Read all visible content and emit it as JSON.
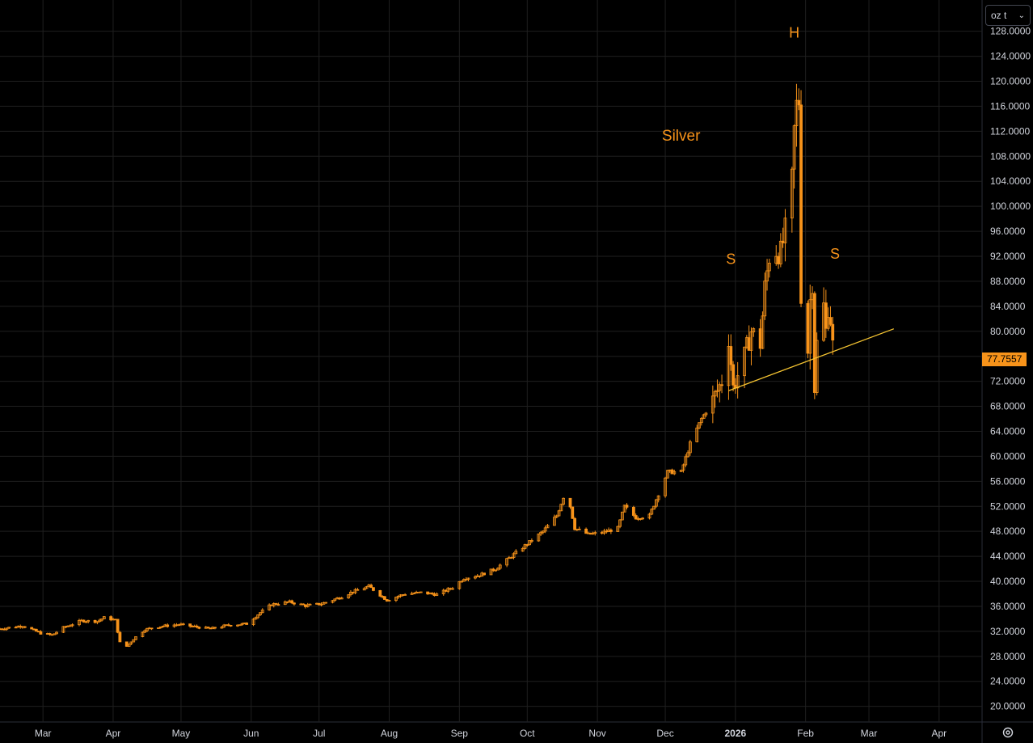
{
  "unit_selector": {
    "value": "oz t"
  },
  "last_price": "77.7557",
  "colors": {
    "background": "#000000",
    "candle": "#f7931a",
    "annotation": "#f7931a",
    "trendline": "#f5c431",
    "grid": "#1f1f1f",
    "axis_text": "#d1d4dc"
  },
  "chart_data": {
    "type": "candlestick",
    "x_axis": {
      "type": "date",
      "range": [
        "2025-02-10",
        "2026-04-20"
      ]
    },
    "y_axis": {
      "min": 17.5,
      "max": 133.0,
      "position": "right",
      "tick_labels": [
        "20.0000",
        "24.0000",
        "28.0000",
        "32.0000",
        "36.0000",
        "40.0000",
        "44.0000",
        "48.0000",
        "52.0000",
        "56.0000",
        "60.0000",
        "64.0000",
        "68.0000",
        "72.0000",
        "76.0000",
        "80.0000",
        "84.0000",
        "88.0000",
        "92.0000",
        "96.0000",
        "100.0000",
        "104.0000",
        "108.0000",
        "112.0000",
        "116.0000",
        "120.0000",
        "124.0000",
        "128.0000"
      ]
    },
    "x_tick_labels": [
      {
        "date": "2025-03-01",
        "label": "Mar"
      },
      {
        "date": "2025-04-01",
        "label": "Apr"
      },
      {
        "date": "2025-05-01",
        "label": "May"
      },
      {
        "date": "2025-06-01",
        "label": "Jun"
      },
      {
        "date": "2025-07-01",
        "label": "Jul"
      },
      {
        "date": "2025-08-01",
        "label": "Aug"
      },
      {
        "date": "2025-09-01",
        "label": "Sep"
      },
      {
        "date": "2025-10-01",
        "label": "Oct"
      },
      {
        "date": "2025-11-01",
        "label": "Nov"
      },
      {
        "date": "2025-12-01",
        "label": "Dec"
      },
      {
        "date": "2026-01-01",
        "label": "2026"
      },
      {
        "date": "2026-02-01",
        "label": "Feb"
      },
      {
        "date": "2026-03-01",
        "label": "Mar"
      },
      {
        "date": "2026-04-01",
        "label": "Apr"
      }
    ],
    "grid": true,
    "annotations": [
      {
        "text": "Silver",
        "date": "2025-12-08",
        "price": 110.5
      },
      {
        "text": "S",
        "date": "2025-12-30",
        "price": 90.8
      },
      {
        "text": "H",
        "date": "2026-01-27",
        "price": 127.0
      },
      {
        "text": "S",
        "date": "2026-02-14",
        "price": 91.6
      }
    ],
    "trendline": {
      "start": {
        "date": "2025-12-29",
        "price": 70.5
      },
      "end": {
        "date": "2026-03-12",
        "price": 80.4
      }
    },
    "points": [
      {
        "date": "2025-02-10",
        "price": 32.4
      },
      {
        "date": "2025-02-20",
        "price": 32.9
      },
      {
        "date": "2025-02-28",
        "price": 31.7
      },
      {
        "date": "2025-03-05",
        "price": 31.4
      },
      {
        "date": "2025-03-10",
        "price": 32.6
      },
      {
        "date": "2025-03-18",
        "price": 33.7
      },
      {
        "date": "2025-03-25",
        "price": 33.6
      },
      {
        "date": "2025-03-28",
        "price": 34.2
      },
      {
        "date": "2025-04-02",
        "price": 33.8
      },
      {
        "date": "2025-04-04",
        "price": 30.2
      },
      {
        "date": "2025-04-07",
        "price": 29.6
      },
      {
        "date": "2025-04-10",
        "price": 30.8
      },
      {
        "date": "2025-04-15",
        "price": 32.3
      },
      {
        "date": "2025-04-22",
        "price": 32.8
      },
      {
        "date": "2025-04-30",
        "price": 33.1
      },
      {
        "date": "2025-05-06",
        "price": 32.8
      },
      {
        "date": "2025-05-14",
        "price": 32.4
      },
      {
        "date": "2025-05-22",
        "price": 33.0
      },
      {
        "date": "2025-05-30",
        "price": 33.2
      },
      {
        "date": "2025-06-05",
        "price": 35.0
      },
      {
        "date": "2025-06-10",
        "price": 36.3
      },
      {
        "date": "2025-06-18",
        "price": 36.7
      },
      {
        "date": "2025-06-25",
        "price": 36.1
      },
      {
        "date": "2025-07-02",
        "price": 36.4
      },
      {
        "date": "2025-07-10",
        "price": 37.4
      },
      {
        "date": "2025-07-15",
        "price": 38.2
      },
      {
        "date": "2025-07-23",
        "price": 39.2
      },
      {
        "date": "2025-07-31",
        "price": 37.0
      },
      {
        "date": "2025-08-08",
        "price": 38.0
      },
      {
        "date": "2025-08-15",
        "price": 38.2
      },
      {
        "date": "2025-08-22",
        "price": 37.9
      },
      {
        "date": "2025-08-29",
        "price": 39.0
      },
      {
        "date": "2025-09-03",
        "price": 40.5
      },
      {
        "date": "2025-09-10",
        "price": 41.0
      },
      {
        "date": "2025-09-17",
        "price": 42.0
      },
      {
        "date": "2025-09-24",
        "price": 44.0
      },
      {
        "date": "2025-10-01",
        "price": 46.0
      },
      {
        "date": "2025-10-08",
        "price": 48.0
      },
      {
        "date": "2025-10-14",
        "price": 50.5
      },
      {
        "date": "2025-10-17",
        "price": 53.5
      },
      {
        "date": "2025-10-20",
        "price": 52.0
      },
      {
        "date": "2025-10-22",
        "price": 48.5
      },
      {
        "date": "2025-10-28",
        "price": 47.5
      },
      {
        "date": "2025-11-03",
        "price": 47.8
      },
      {
        "date": "2025-11-10",
        "price": 48.5
      },
      {
        "date": "2025-11-13",
        "price": 52.0
      },
      {
        "date": "2025-11-18",
        "price": 50.2
      },
      {
        "date": "2025-11-24",
        "price": 50.5
      },
      {
        "date": "2025-11-28",
        "price": 54.0
      },
      {
        "date": "2025-12-02",
        "price": 57.5
      },
      {
        "date": "2025-12-08",
        "price": 57.5
      },
      {
        "date": "2025-12-12",
        "price": 62.0
      },
      {
        "date": "2025-12-17",
        "price": 66.0
      },
      {
        "date": "2025-12-22",
        "price": 69.0
      },
      {
        "date": "2025-12-26",
        "price": 72.0
      },
      {
        "date": "2025-12-29",
        "price": 79.0
      },
      {
        "date": "2025-12-31",
        "price": 71.0
      },
      {
        "date": "2026-01-05",
        "price": 76.0
      },
      {
        "date": "2026-01-08",
        "price": 80.0
      },
      {
        "date": "2026-01-12",
        "price": 78.0
      },
      {
        "date": "2026-01-14",
        "price": 87.0
      },
      {
        "date": "2026-01-16",
        "price": 92.0
      },
      {
        "date": "2026-01-19",
        "price": 93.0
      },
      {
        "date": "2026-01-21",
        "price": 92.5
      },
      {
        "date": "2026-01-23",
        "price": 96.0
      },
      {
        "date": "2026-01-26",
        "price": 104.0
      },
      {
        "date": "2026-01-27",
        "price": 112.0
      },
      {
        "date": "2026-01-28",
        "price": 116.0
      },
      {
        "date": "2026-01-29",
        "price": 117.0
      },
      {
        "date": "2026-01-30",
        "price": 86.0
      },
      {
        "date": "2026-02-02",
        "price": 77.0
      },
      {
        "date": "2026-02-03",
        "price": 85.0
      },
      {
        "date": "2026-02-04",
        "price": 88.0
      },
      {
        "date": "2026-02-05",
        "price": 71.0
      },
      {
        "date": "2026-02-06",
        "price": 78.0
      },
      {
        "date": "2026-02-09",
        "price": 84.0
      },
      {
        "date": "2026-02-10",
        "price": 80.0
      },
      {
        "date": "2026-02-11",
        "price": 84.0
      },
      {
        "date": "2026-02-12",
        "price": 82.0
      },
      {
        "date": "2026-02-13",
        "price": 77.76
      }
    ]
  }
}
